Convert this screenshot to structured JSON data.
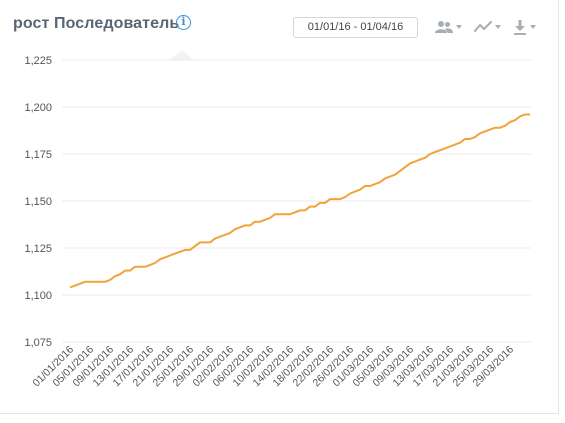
{
  "header": {
    "title": "рост Последователь",
    "date_range": "01/01/16 - 01/04/16"
  },
  "toolbar": {
    "users_icon": "users-icon",
    "trend_icon": "line-chart-icon",
    "download_icon": "download-icon"
  },
  "colors": {
    "line": "#f0a33a",
    "info": "#3f8fd6",
    "grid": "#ebebeb"
  },
  "chart_data": {
    "type": "line",
    "ylim": [
      1075,
      1225
    ],
    "yticks": [
      1075,
      1100,
      1125,
      1150,
      1175,
      1200,
      1225
    ],
    "ytick_labels": [
      "1,075",
      "1,100",
      "1,125",
      "1,150",
      "1,175",
      "1,200",
      "1,225"
    ],
    "xtick_labels": [
      "01/01/2016",
      "05/01/2016",
      "09/01/2016",
      "13/01/2016",
      "17/01/2016",
      "21/01/2016",
      "25/01/2016",
      "29/01/2016",
      "02/02/2016",
      "06/02/2016",
      "10/02/2016",
      "14/02/2016",
      "18/02/2016",
      "22/02/2016",
      "26/02/2016",
      "01/03/2016",
      "05/03/2016",
      "09/03/2016",
      "13/03/2016",
      "17/03/2016",
      "21/03/2016",
      "25/03/2016",
      "29/03/2016"
    ],
    "series": [
      {
        "values": [
          1104,
          1105,
          1106,
          1107,
          1107,
          1107,
          1107,
          1107,
          1108,
          1110,
          1111,
          1113,
          1113,
          1115,
          1115,
          1115,
          1116,
          1117,
          1119,
          1120,
          1121,
          1122,
          1123,
          1124,
          1124,
          1126,
          1128,
          1128,
          1128,
          1130,
          1131,
          1132,
          1133,
          1135,
          1136,
          1137,
          1137,
          1139,
          1139,
          1140,
          1141,
          1143,
          1143,
          1143,
          1143,
          1144,
          1145,
          1145,
          1147,
          1147,
          1149,
          1149,
          1151,
          1151,
          1151,
          1152,
          1154,
          1155,
          1156,
          1158,
          1158,
          1159,
          1160,
          1162,
          1163,
          1164,
          1166,
          1168,
          1170,
          1171,
          1172,
          1173,
          1175,
          1176,
          1177,
          1178,
          1179,
          1180,
          1181,
          1183,
          1183,
          1184,
          1186,
          1187,
          1188,
          1189,
          1189,
          1190,
          1192,
          1193,
          1195,
          1196,
          1196
        ]
      }
    ]
  }
}
